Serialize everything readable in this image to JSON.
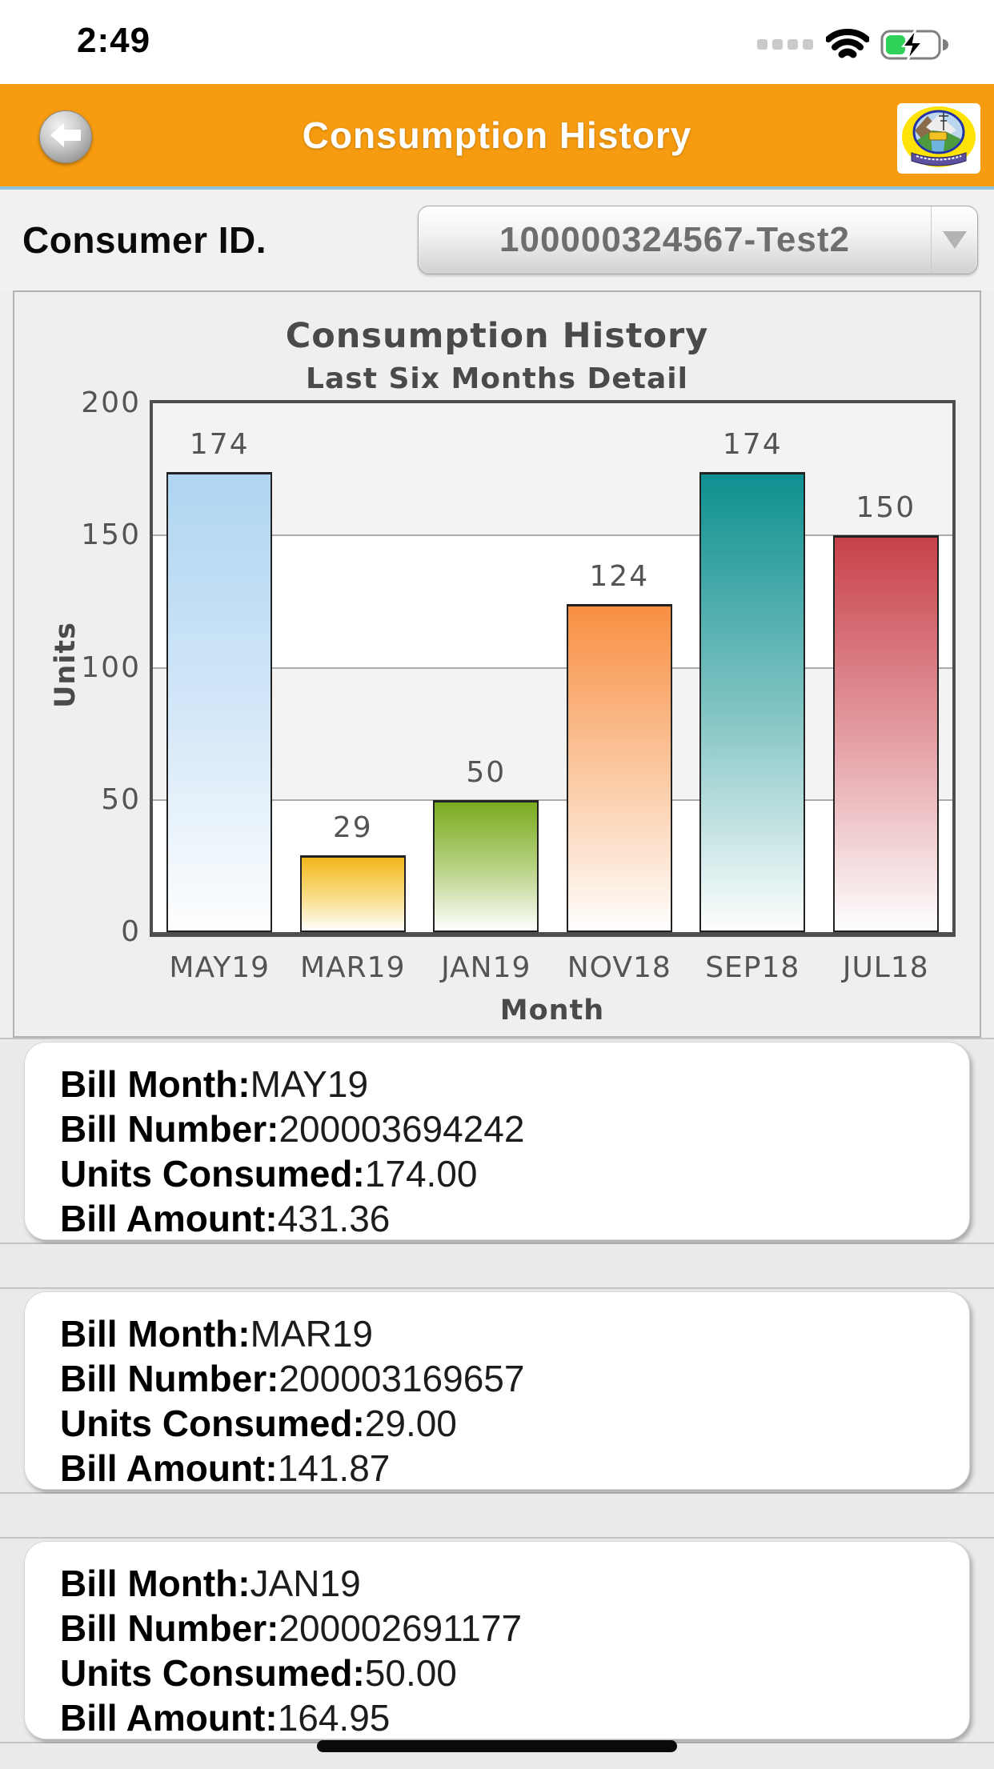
{
  "status_bar": {
    "time": "2:49"
  },
  "header": {
    "title": "Consumption History"
  },
  "icons": {
    "back": "back-arrow",
    "logo": "hpseb-emblem",
    "cellular": "cellular-signal-dots",
    "wifi": "wifi",
    "battery": "battery-charging",
    "dropdown": "chevron-down",
    "home": "home-indicator"
  },
  "colors": {
    "header_bg": "#F79C10",
    "header_border": "#8FC0DD",
    "battery_fill": "#30D158",
    "chart_text": "#4A4A4A",
    "tick_color": "#545454"
  },
  "consumer": {
    "label": "Consumer ID.",
    "value": "100000324567-Test2"
  },
  "chart_data": {
    "type": "bar",
    "title": "Consumption History",
    "subtitle": "Last Six Months Detail",
    "xlabel": "Month",
    "ylabel": "Units",
    "ylim": [
      0,
      200
    ],
    "yticks": [
      0,
      50,
      100,
      150,
      200
    ],
    "gridlines": [
      50,
      100,
      150
    ],
    "grid": "horizontal-bands",
    "legend": "none",
    "categories": [
      "MAY19",
      "MAR19",
      "JAN19",
      "NOV18",
      "SEP18",
      "JUL18"
    ],
    "values": [
      174,
      29,
      50,
      124,
      174,
      150
    ],
    "bar_colors": [
      {
        "top": "#AFD5F1",
        "mid": "#D3E7F8"
      },
      {
        "top": "#F3B71D",
        "mid": "#F9DC82"
      },
      {
        "top": "#7AAB1E",
        "mid": "#B9D386"
      },
      {
        "top": "#F88F43",
        "mid": "#FBC9A2"
      },
      {
        "top": "#0E9090",
        "mid": "#82C4C4"
      },
      {
        "top": "#C8414A",
        "mid": "#E4A0A5"
      }
    ]
  },
  "bills": {
    "labels": {
      "month": "Bill Month:",
      "number": "Bill Number:",
      "units": "Units Consumed:",
      "amount": "Bill Amount:"
    },
    "items": [
      {
        "month": "MAY19",
        "number": "200003694242",
        "units": "174.00",
        "amount": "431.36"
      },
      {
        "month": "MAR19",
        "number": "200003169657",
        "units": "29.00",
        "amount": "141.87"
      },
      {
        "month": "JAN19",
        "number": "200002691177",
        "units": "50.00",
        "amount": "164.95"
      }
    ]
  }
}
